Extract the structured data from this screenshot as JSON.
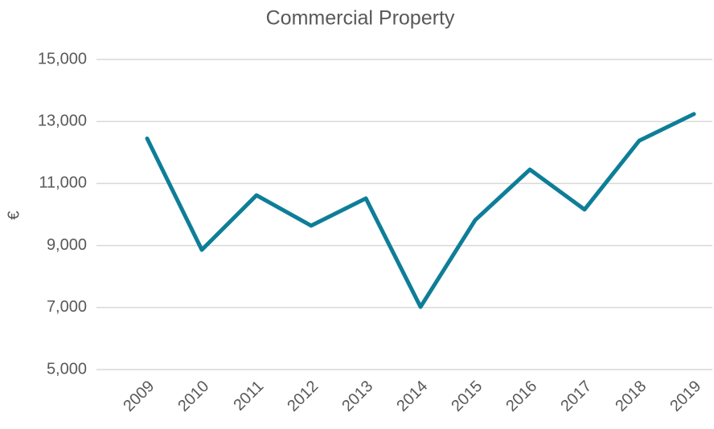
{
  "chart_data": {
    "type": "line",
    "title": "Commercial Property",
    "y_label": "€",
    "categories": [
      "2009",
      "2010",
      "2011",
      "2012",
      "2013",
      "2014",
      "2015",
      "2016",
      "2017",
      "2018",
      "2019"
    ],
    "series": [
      {
        "name": "Commercial Property",
        "color": "#0e7e98",
        "values": [
          12450,
          8860,
          10620,
          9640,
          10520,
          7020,
          9820,
          11450,
          10160,
          12380,
          13240
        ]
      }
    ],
    "ylim": [
      5000,
      15000
    ],
    "yticks": [
      {
        "value": 5000,
        "label": "5,000"
      },
      {
        "value": 7000,
        "label": "7,000"
      },
      {
        "value": 9000,
        "label": "9,000"
      },
      {
        "value": 11000,
        "label": "11,000"
      },
      {
        "value": 13000,
        "label": "13,000"
      },
      {
        "value": 15000,
        "label": "15,000"
      }
    ],
    "grid": true
  }
}
